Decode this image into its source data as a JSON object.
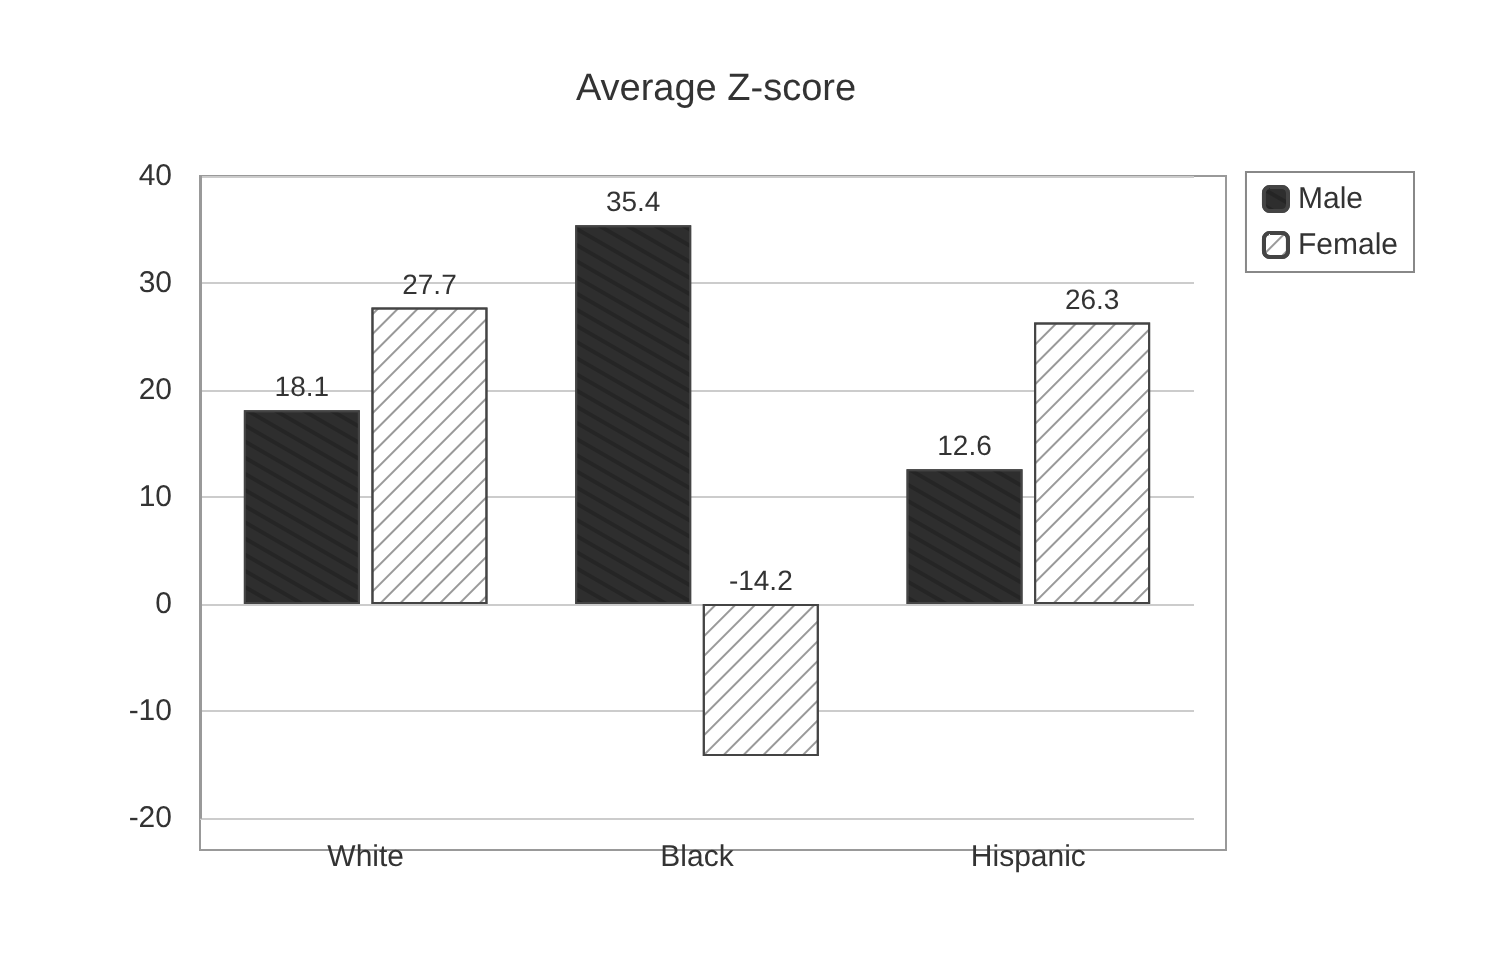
{
  "chart_data": {
    "type": "bar",
    "title": "Average Z-score",
    "categories": [
      "White",
      "Black",
      "Hispanic"
    ],
    "series": [
      {
        "name": "Male",
        "color": "#2e2e2e",
        "values": [
          18.1,
          35.4,
          12.6
        ]
      },
      {
        "name": "Female",
        "color": "#ffffff",
        "values": [
          27.7,
          -14.2,
          26.3
        ]
      }
    ],
    "ylim": [
      -20,
      40
    ],
    "yticks": [
      -20,
      -10,
      0,
      10,
      20,
      30,
      40
    ],
    "grid": "y",
    "legend": "top right",
    "data_labels": true
  }
}
